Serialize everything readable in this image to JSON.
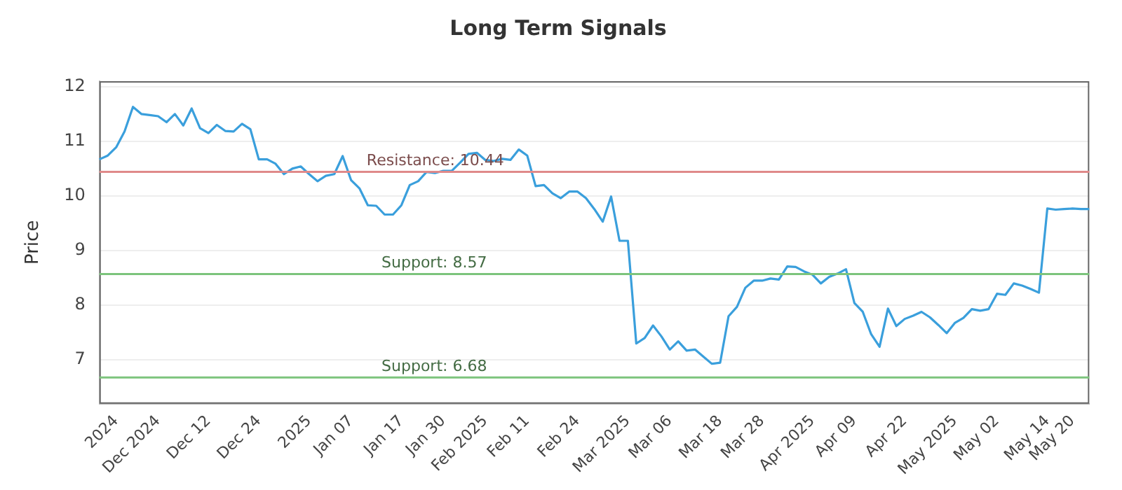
{
  "chart_data": {
    "type": "line",
    "title": "Long Term Signals",
    "ylabel": "Price",
    "categories": [
      null,
      null,
      "2024",
      null,
      null,
      null,
      null,
      "Dec 2024",
      null,
      null,
      null,
      null,
      null,
      "Dec 12",
      null,
      null,
      null,
      null,
      null,
      "Dec 24",
      null,
      null,
      null,
      null,
      null,
      "2025",
      null,
      null,
      null,
      null,
      "Jan 07",
      null,
      null,
      null,
      null,
      null,
      "Jan 17",
      null,
      null,
      null,
      null,
      "Jan 30",
      null,
      null,
      null,
      null,
      "Feb 2025",
      null,
      null,
      null,
      null,
      "Feb 11",
      null,
      null,
      null,
      null,
      null,
      "Feb 24",
      null,
      null,
      null,
      null,
      null,
      "Mar 2025",
      null,
      null,
      null,
      null,
      "Mar 06",
      null,
      null,
      null,
      null,
      null,
      "Mar 18",
      null,
      null,
      null,
      null,
      "Mar 28",
      null,
      null,
      null,
      null,
      null,
      "Apr 2025",
      null,
      null,
      null,
      null,
      "Apr 09",
      null,
      null,
      null,
      null,
      null,
      "Apr 22",
      null,
      null,
      null,
      null,
      null,
      "May 2025",
      null,
      null,
      null,
      null,
      "May 02",
      null,
      null,
      null,
      null,
      null,
      "May 14",
      null,
      null,
      "May 20",
      null,
      null
    ],
    "series": [
      {
        "color": "#3a9fdc",
        "values": [
          10.67,
          10.74,
          10.89,
          11.18,
          11.63,
          11.5,
          11.48,
          11.46,
          11.35,
          11.5,
          11.29,
          11.6,
          11.24,
          11.15,
          11.3,
          11.19,
          11.18,
          11.32,
          11.22,
          10.67,
          10.67,
          10.59,
          10.4,
          10.5,
          10.54,
          10.4,
          10.27,
          10.37,
          10.4,
          10.73,
          10.29,
          10.14,
          9.83,
          9.82,
          9.66,
          9.66,
          9.83,
          10.2,
          10.27,
          10.44,
          10.42,
          10.46,
          10.46,
          10.61,
          10.77,
          10.79,
          10.66,
          10.64,
          10.68,
          10.66,
          10.85,
          10.74,
          10.18,
          10.2,
          10.05,
          9.96,
          10.08,
          10.08,
          9.96,
          9.76,
          9.53,
          9.99,
          9.18,
          9.18,
          7.3,
          7.4,
          7.63,
          7.43,
          7.19,
          7.34,
          7.17,
          7.19,
          7.06,
          6.93,
          6.95,
          7.8,
          7.97,
          8.32,
          8.45,
          8.45,
          8.49,
          8.47,
          8.71,
          8.7,
          8.62,
          8.56,
          8.4,
          8.52,
          8.58,
          8.66,
          8.04,
          7.88,
          7.47,
          7.24,
          7.94,
          7.62,
          7.75,
          7.81,
          7.88,
          7.78,
          7.64,
          7.49,
          7.68,
          7.77,
          7.93,
          7.9,
          7.93,
          8.21,
          8.19,
          8.4,
          8.36,
          8.3,
          8.23,
          9.77,
          9.75,
          9.76,
          9.77,
          9.76,
          9.76
        ]
      }
    ],
    "ylim": [
      6.2,
      12.1
    ],
    "yticks": [
      7,
      8,
      9,
      10,
      11,
      12
    ],
    "grid": "y",
    "legend": false,
    "marker": "none",
    "line_style": "solid",
    "ref_lines": [
      {
        "axis": "y",
        "value": 10.44,
        "label": "Resistance: 10.44",
        "color": "#e08a8a"
      },
      {
        "axis": "y",
        "value": 8.57,
        "label": "Support: 8.57",
        "color": "#7cc47c"
      },
      {
        "axis": "y",
        "value": 6.68,
        "label": "Support: 6.68",
        "color": "#7cc47c"
      }
    ]
  }
}
